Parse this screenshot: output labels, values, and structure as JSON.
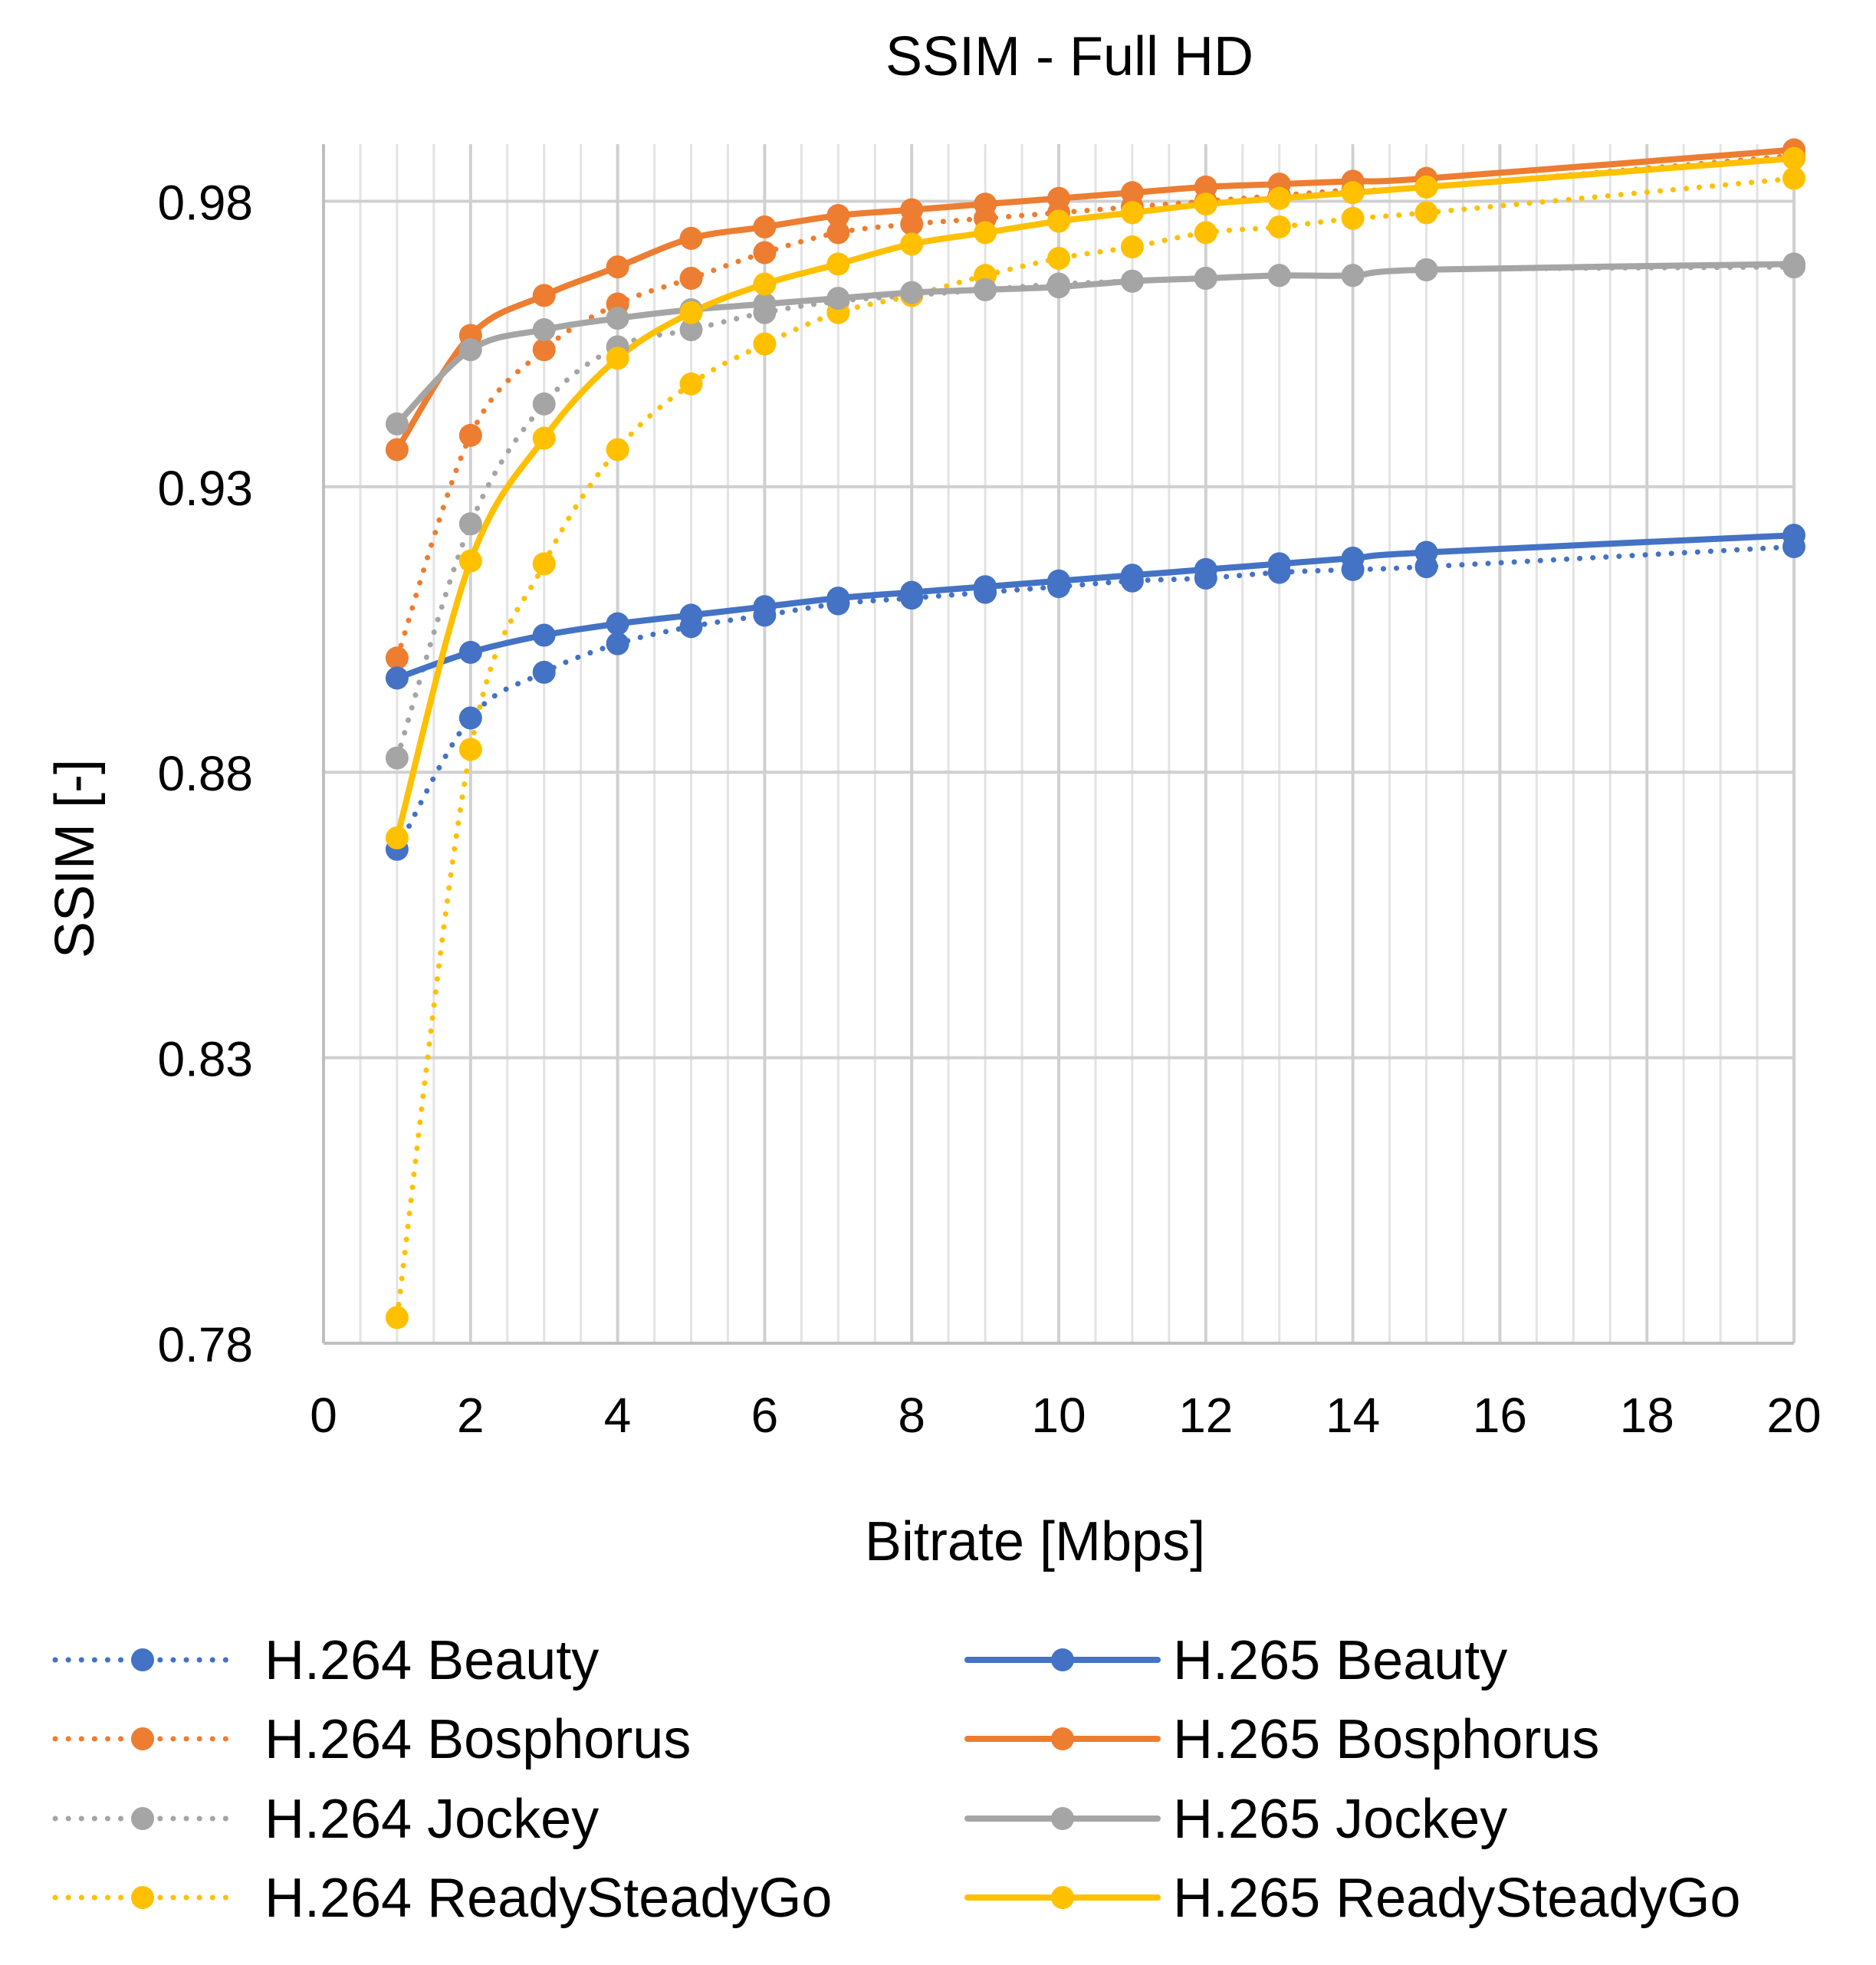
{
  "chart_data": {
    "type": "line",
    "title": "SSIM - Full HD",
    "xlabel": "Bitrate [Mbps]",
    "ylabel": "SSIM [-]",
    "xlim": [
      0,
      20
    ],
    "ylim": [
      0.78,
      0.99
    ],
    "x_ticks": [
      "0",
      "2",
      "4",
      "6",
      "8",
      "10",
      "12",
      "14",
      "16",
      "18",
      "20"
    ],
    "y_ticks": [
      "0.78",
      "0.83",
      "0.88",
      "0.93",
      "0.98"
    ],
    "grid": true,
    "legend_position": "bottom",
    "x": [
      1,
      2,
      3,
      4,
      5,
      6,
      7,
      8,
      9,
      10,
      11,
      12,
      13,
      14,
      15,
      20
    ],
    "series": [
      {
        "name": "H.264 Beauty",
        "codec": "H.264",
        "style": "dotted",
        "color": "#4472C4",
        "values": [
          0.8665,
          0.8895,
          0.8975,
          0.9025,
          0.9055,
          0.9075,
          0.9095,
          0.9105,
          0.9115,
          0.9125,
          0.9135,
          0.914,
          0.915,
          0.9155,
          0.916,
          0.9195
        ]
      },
      {
        "name": "H.264 Bosphorus",
        "codec": "H.264",
        "style": "dotted",
        "color": "#ED7D31",
        "values": [
          0.9,
          0.939,
          0.954,
          0.962,
          0.9665,
          0.971,
          0.9745,
          0.976,
          0.977,
          0.978,
          0.979,
          0.98,
          0.981,
          0.982,
          0.9825,
          0.988
        ]
      },
      {
        "name": "H.264 Jockey",
        "codec": "H.264",
        "style": "dotted",
        "color": "#A5A5A5",
        "values": [
          0.8825,
          0.9235,
          0.9445,
          0.9545,
          0.9575,
          0.9605,
          0.9625,
          0.9635,
          0.9645,
          0.9655,
          0.966,
          0.9665,
          0.967,
          0.967,
          0.968,
          0.9685
        ]
      },
      {
        "name": "H.264 ReadySteadyGo",
        "codec": "H.264",
        "style": "dotted",
        "color": "#FFC000",
        "values": [
          0.7845,
          0.884,
          0.9165,
          0.9365,
          0.948,
          0.955,
          0.9605,
          0.9635,
          0.967,
          0.97,
          0.972,
          0.9745,
          0.9755,
          0.977,
          0.978,
          0.984
        ]
      },
      {
        "name": "H.265 Beauty",
        "codec": "H.265",
        "style": "solid",
        "color": "#4472C4",
        "values": [
          0.8965,
          0.901,
          0.904,
          0.906,
          0.9075,
          0.909,
          0.9105,
          0.9115,
          0.9125,
          0.9135,
          0.9145,
          0.9155,
          0.9165,
          0.9175,
          0.9185,
          0.9215
        ]
      },
      {
        "name": "H.265 Bosphorus",
        "codec": "H.265",
        "style": "solid",
        "color": "#ED7D31",
        "values": [
          0.9365,
          0.9565,
          0.9635,
          0.9685,
          0.9735,
          0.9755,
          0.9775,
          0.9785,
          0.9795,
          0.9805,
          0.9815,
          0.9825,
          0.983,
          0.9835,
          0.984,
          0.989
        ]
      },
      {
        "name": "H.265 Jockey",
        "codec": "H.265",
        "style": "solid",
        "color": "#A5A5A5",
        "values": [
          0.941,
          0.954,
          0.9575,
          0.9595,
          0.961,
          0.962,
          0.963,
          0.964,
          0.9645,
          0.965,
          0.966,
          0.9665,
          0.967,
          0.967,
          0.968,
          0.969
        ]
      },
      {
        "name": "H.265 ReadySteadyGo",
        "codec": "H.265",
        "style": "solid",
        "color": "#FFC000",
        "values": [
          0.8685,
          0.917,
          0.9385,
          0.9525,
          0.9605,
          0.9655,
          0.969,
          0.9725,
          0.9745,
          0.9765,
          0.978,
          0.9795,
          0.9805,
          0.9815,
          0.9825,
          0.9875
        ]
      }
    ]
  }
}
